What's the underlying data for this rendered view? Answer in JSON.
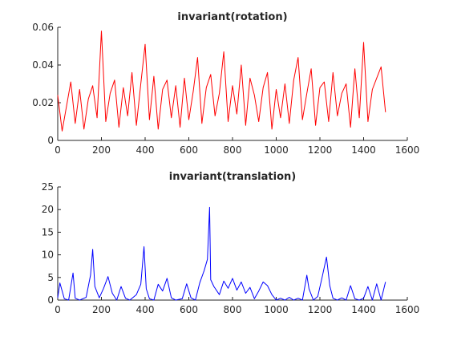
{
  "chart_data": [
    {
      "type": "line",
      "title": "invariant(rotation)",
      "xlabel": "",
      "ylabel": "",
      "xlim": [
        0,
        1600
      ],
      "ylim": [
        0,
        0.06
      ],
      "xticks": [
        0,
        200,
        400,
        600,
        800,
        1000,
        1200,
        1400,
        1600
      ],
      "xtick_labels": [
        "0",
        "200",
        "400",
        "600",
        "800",
        "1000",
        "1200",
        "1400",
        "1600"
      ],
      "yticks": [
        0,
        0.02,
        0.04,
        0.06
      ],
      "ytick_labels": [
        "0",
        "0.02",
        "0.04",
        "0.06"
      ],
      "grid": false,
      "color": "#ff0000",
      "series": [
        {
          "x": [
            0,
            20,
            40,
            60,
            80,
            100,
            120,
            140,
            160,
            180,
            200,
            220,
            240,
            260,
            280,
            300,
            320,
            340,
            360,
            380,
            400,
            420,
            440,
            460,
            480,
            500,
            520,
            540,
            560,
            580,
            600,
            620,
            640,
            660,
            680,
            700,
            720,
            740,
            760,
            780,
            800,
            820,
            840,
            860,
            880,
            900,
            920,
            940,
            960,
            980,
            1000,
            1020,
            1040,
            1060,
            1080,
            1100,
            1120,
            1140,
            1160,
            1180,
            1200,
            1220,
            1240,
            1260,
            1280,
            1300,
            1320,
            1340,
            1360,
            1380,
            1400,
            1420,
            1440,
            1460,
            1480,
            1500
          ],
          "y": [
            0.024,
            0.005,
            0.018,
            0.031,
            0.009,
            0.027,
            0.006,
            0.022,
            0.029,
            0.012,
            0.058,
            0.01,
            0.025,
            0.032,
            0.007,
            0.028,
            0.013,
            0.036,
            0.008,
            0.03,
            0.051,
            0.011,
            0.034,
            0.006,
            0.027,
            0.032,
            0.012,
            0.029,
            0.007,
            0.033,
            0.011,
            0.026,
            0.044,
            0.009,
            0.028,
            0.035,
            0.013,
            0.025,
            0.047,
            0.01,
            0.029,
            0.014,
            0.04,
            0.008,
            0.033,
            0.024,
            0.01,
            0.028,
            0.036,
            0.006,
            0.027,
            0.012,
            0.03,
            0.009,
            0.032,
            0.044,
            0.011,
            0.025,
            0.038,
            0.008,
            0.028,
            0.031,
            0.01,
            0.036,
            0.013,
            0.025,
            0.03,
            0.007,
            0.038,
            0.012,
            0.052,
            0.01,
            0.027,
            0.033,
            0.039,
            0.015
          ]
        }
      ]
    },
    {
      "type": "line",
      "title": "invariant(translation)",
      "xlabel": "",
      "ylabel": "",
      "xlim": [
        0,
        1600
      ],
      "ylim": [
        0,
        25
      ],
      "xticks": [
        0,
        200,
        400,
        600,
        800,
        1000,
        1200,
        1400,
        1600
      ],
      "xtick_labels": [
        "0",
        "200",
        "400",
        "600",
        "800",
        "1000",
        "1200",
        "1400",
        "1600"
      ],
      "yticks": [
        0,
        5,
        10,
        15,
        20,
        25
      ],
      "ytick_labels": [
        "0",
        "5",
        "10",
        "15",
        "20",
        "25"
      ],
      "grid": false,
      "color": "#0000ff",
      "series": [
        {
          "x": [
            0,
            10,
            30,
            50,
            70,
            80,
            100,
            130,
            150,
            160,
            170,
            190,
            210,
            230,
            250,
            270,
            290,
            310,
            330,
            360,
            380,
            395,
            405,
            420,
            440,
            460,
            480,
            500,
            520,
            540,
            570,
            590,
            610,
            630,
            650,
            670,
            685,
            695,
            700,
            715,
            740,
            760,
            780,
            800,
            820,
            840,
            860,
            880,
            900,
            920,
            940,
            960,
            980,
            1000,
            1020,
            1040,
            1060,
            1080,
            1100,
            1120,
            1140,
            1150,
            1170,
            1190,
            1210,
            1230,
            1245,
            1260,
            1280,
            1300,
            1320,
            1340,
            1360,
            1380,
            1400,
            1420,
            1440,
            1460,
            1480,
            1500
          ],
          "y": [
            0.5,
            3.8,
            0.3,
            0.0,
            6.0,
            0.4,
            0.0,
            0.6,
            5.5,
            11.2,
            3.0,
            0.5,
            2.6,
            5.2,
            1.5,
            0.0,
            3.0,
            0.4,
            0.0,
            1.2,
            3.5,
            11.8,
            2.5,
            0.3,
            0.0,
            3.5,
            2.0,
            4.8,
            0.5,
            0.0,
            0.3,
            3.6,
            0.5,
            0.0,
            3.8,
            6.5,
            9.0,
            20.5,
            4.5,
            3.0,
            1.2,
            4.2,
            2.6,
            4.8,
            2.2,
            4.0,
            1.5,
            2.8,
            0.3,
            2.0,
            4.0,
            3.2,
            1.2,
            0.0,
            0.4,
            0.0,
            0.6,
            0.0,
            0.4,
            0.0,
            5.5,
            2.5,
            0.0,
            0.8,
            5.0,
            9.5,
            3.2,
            0.4,
            0.0,
            0.5,
            0.0,
            3.2,
            0.3,
            0.0,
            0.4,
            3.0,
            0.0,
            3.6,
            0.0,
            4.0
          ]
        }
      ]
    }
  ]
}
